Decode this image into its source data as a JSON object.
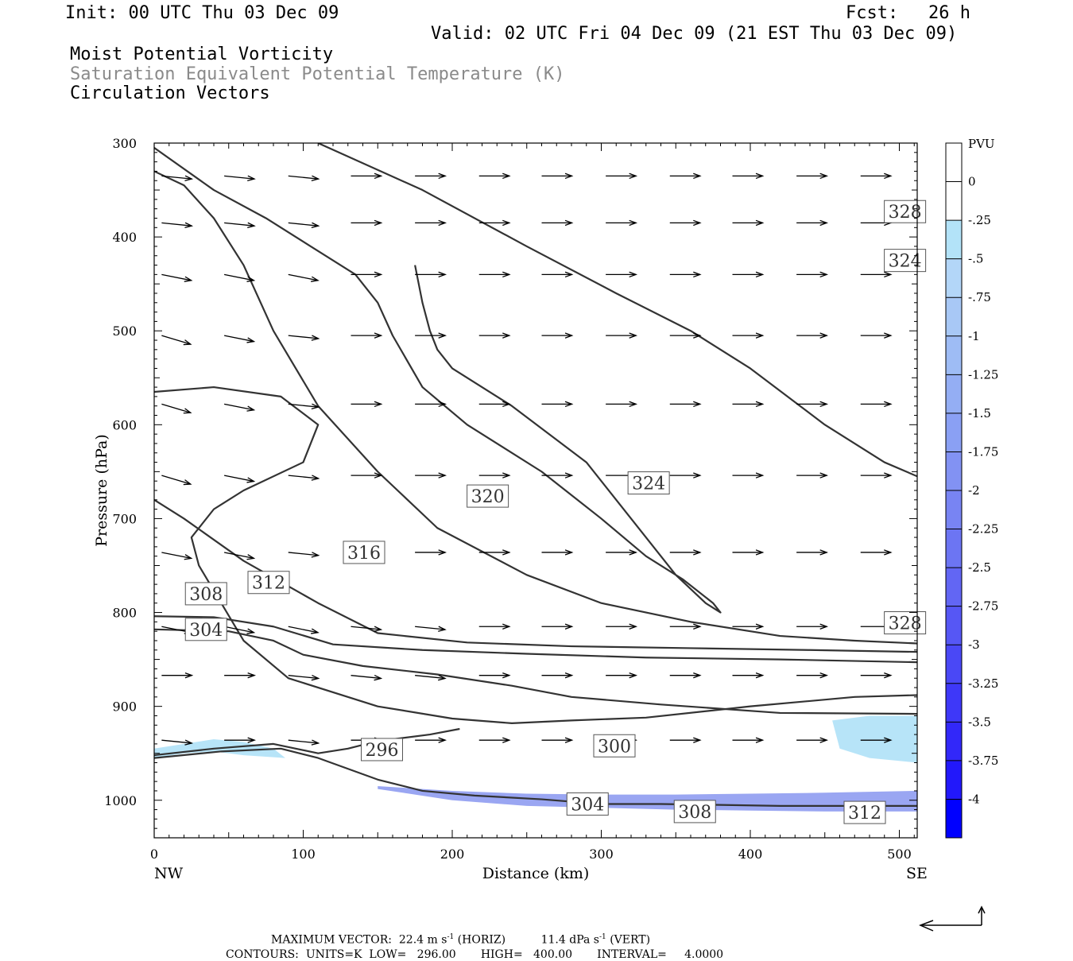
{
  "header": {
    "init": "Init: 00 UTC Thu 03 Dec 09",
    "fcst_label": "Fcst:",
    "fcst_value": "26 h",
    "valid": "Valid: 02 UTC Fri 04 Dec 09 (21 EST Thu 03 Dec 09)",
    "field1": "Moist Potential Vorticity",
    "field2": "Saturation Equivalent Potential Temperature (K)",
    "field3": "Circulation Vectors"
  },
  "chart_data": {
    "type": "cross-section",
    "xlabel": "Distance (km)",
    "ylabel": "Pressure (hPa)",
    "x_ticks": [
      "0",
      "100",
      "200",
      "300",
      "400",
      "500"
    ],
    "x_end_labels": {
      "left": "NW",
      "right": "SE"
    },
    "xlim": [
      0,
      512
    ],
    "y_ticks": [
      "300",
      "400",
      "500",
      "600",
      "700",
      "800",
      "900",
      "1000"
    ],
    "ylim": [
      1040,
      300
    ],
    "pv_colorbar": {
      "unit": "PVU",
      "labels": [
        "0",
        "-.25",
        "-.5",
        "-.75",
        "-1",
        "-1.25",
        "-1.5",
        "-1.75",
        "-2",
        "-2.25",
        "-2.5",
        "-2.75",
        "-3",
        "-3.25",
        "-3.5",
        "-3.75",
        "-4"
      ],
      "colors": [
        "#ffffff",
        "#ffffff",
        "#b3e3f8",
        "#b3d6f8",
        "#a8c8f6",
        "#9ebcf5",
        "#94aef4",
        "#8aa0f4",
        "#8292f3",
        "#7884f3",
        "#6c75f3",
        "#6266f4",
        "#5657f5",
        "#4a48f6",
        "#3e38f8",
        "#3228f9",
        "#2218fb",
        "#0000ff"
      ]
    },
    "theta_contours": [
      {
        "label": "296",
        "x": [
          0,
          40,
          80,
          95,
          110,
          130,
          150,
          185,
          205
        ],
        "p": [
          952,
          945,
          940,
          945,
          950,
          945,
          937,
          930,
          924
        ]
      },
      {
        "label": "300",
        "x": [
          0,
          45,
          85,
          110,
          150,
          180,
          215,
          260,
          300,
          340,
          380,
          420,
          460,
          512
        ],
        "p": [
          955,
          948,
          945,
          955,
          978,
          990,
          995,
          999,
          1004,
          1004,
          1005,
          1006,
          1006,
          1006
        ]
      },
      {
        "label": "304",
        "x": [
          0,
          50,
          80,
          100,
          140,
          190,
          240,
          280,
          340,
          420,
          512
        ],
        "p": [
          818,
          820,
          830,
          845,
          857,
          866,
          878,
          890,
          898,
          907,
          908
        ]
      },
      {
        "label": "308",
        "x": [
          0,
          40,
          80,
          120,
          180,
          250,
          330,
          420,
          512
        ],
        "p": [
          804,
          805,
          815,
          834,
          840,
          844,
          848,
          850,
          853
        ]
      },
      {
        "label": "312",
        "x": [
          0,
          20,
          60,
          110,
          150,
          210,
          280,
          360,
          440,
          512
        ],
        "p": [
          680,
          700,
          745,
          790,
          822,
          832,
          836,
          838,
          840,
          842
        ]
      },
      {
        "label": "316",
        "x": [
          0,
          20,
          40,
          60,
          80,
          110,
          150,
          190,
          250,
          300,
          360,
          420,
          470,
          512
        ],
        "p": [
          330,
          345,
          380,
          430,
          500,
          580,
          650,
          710,
          760,
          790,
          810,
          825,
          830,
          833
        ]
      },
      {
        "label": "320",
        "x": [
          0,
          40,
          85,
          110,
          100,
          60,
          40,
          25,
          30,
          45,
          60,
          90,
          150,
          200,
          240,
          280,
          330,
          400,
          470,
          512
        ],
        "p": [
          565,
          560,
          570,
          600,
          640,
          670,
          690,
          720,
          750,
          790,
          830,
          870,
          900,
          913,
          918,
          915,
          912,
          900,
          890,
          888
        ]
      },
      {
        "label": "324",
        "x": [
          0,
          40,
          75,
          105,
          135,
          150,
          160,
          180,
          210,
          260,
          300,
          330,
          355,
          375,
          380,
          370,
          350,
          320,
          290,
          240,
          200,
          190,
          185,
          180,
          175
        ],
        "p": [
          305,
          350,
          380,
          410,
          440,
          470,
          505,
          560,
          600,
          650,
          700,
          740,
          765,
          790,
          800,
          790,
          760,
          700,
          640,
          580,
          540,
          520,
          500,
          470,
          430
        ]
      },
      {
        "label": "328",
        "x": [
          110,
          180,
          250,
          310,
          360,
          400,
          450,
          490,
          512
        ],
        "p": [
          300,
          350,
          410,
          460,
          500,
          540,
          600,
          640,
          655
        ]
      }
    ],
    "theta_labels": [
      {
        "text": "296",
        "x": 140,
        "p": 946
      },
      {
        "text": "300",
        "x": 296,
        "p": 942
      },
      {
        "text": "304",
        "x": 278,
        "p": 1004
      },
      {
        "text": "308",
        "x": 350,
        "p": 1012
      },
      {
        "text": "312",
        "x": 464,
        "p": 1013
      },
      {
        "text": "304",
        "x": 22,
        "p": 818
      },
      {
        "text": "308",
        "x": 22,
        "p": 780
      },
      {
        "text": "312",
        "x": 64,
        "p": 768
      },
      {
        "text": "316",
        "x": 128,
        "p": 736
      },
      {
        "text": "320",
        "x": 211,
        "p": 676
      },
      {
        "text": "324",
        "x": 319,
        "p": 662
      },
      {
        "text": "324",
        "x": 491,
        "p": 425
      },
      {
        "text": "328",
        "x": 491,
        "p": 373
      },
      {
        "text": "328",
        "x": 491,
        "p": 811
      }
    ],
    "vectors": {
      "x": [
        5,
        47,
        90,
        132,
        175,
        218,
        260,
        303,
        346,
        388,
        431,
        474
      ],
      "p": [
        335,
        385,
        440,
        505,
        578,
        654,
        736,
        815,
        867,
        936
      ],
      "u": [
        [
          1,
          1,
          1,
          1,
          1,
          1,
          1,
          1,
          1,
          1,
          1,
          1
        ],
        [
          1,
          1,
          1,
          1,
          1,
          1,
          1,
          1,
          1,
          1,
          1,
          1
        ],
        [
          1,
          1,
          1,
          1,
          1,
          1,
          1,
          1,
          1,
          1,
          1,
          1
        ],
        [
          1,
          1,
          1,
          1,
          1,
          1,
          1,
          1,
          1,
          1,
          1,
          1
        ],
        [
          1,
          1,
          1,
          1,
          1,
          1,
          1,
          1,
          1,
          1,
          1,
          1
        ],
        [
          1,
          1,
          1,
          1,
          1,
          1,
          1,
          1,
          1,
          1,
          1,
          1
        ],
        [
          1,
          1,
          1,
          1,
          1,
          1,
          1,
          1,
          1,
          1,
          1,
          1
        ],
        [
          1,
          1,
          1,
          1,
          1,
          1,
          1,
          1,
          1,
          1,
          1,
          1
        ],
        [
          1,
          1,
          1,
          1,
          1,
          1,
          1,
          1,
          1,
          1,
          1,
          1
        ],
        [
          1,
          1,
          1,
          1,
          1,
          1,
          1,
          1,
          1,
          1,
          1,
          1
        ]
      ],
      "w": [
        [
          -0.1,
          -0.1,
          -0.1,
          0,
          0,
          0,
          0,
          0,
          0,
          0,
          0,
          0
        ],
        [
          -0.1,
          -0.1,
          -0.1,
          0,
          0,
          0,
          0,
          0,
          0,
          0,
          0,
          0
        ],
        [
          -0.2,
          -0.2,
          -0.2,
          0,
          0,
          0,
          0,
          0,
          0,
          0,
          0,
          0
        ],
        [
          -0.3,
          -0.2,
          -0.1,
          0,
          0,
          0,
          0,
          0,
          0,
          0,
          0,
          0
        ],
        [
          -0.3,
          -0.2,
          -0.1,
          0,
          0,
          0,
          0,
          0,
          0,
          0,
          0,
          0
        ],
        [
          -0.3,
          -0.2,
          -0.1,
          0,
          0,
          0,
          0,
          0,
          0,
          0,
          0,
          0
        ],
        [
          -0.2,
          -0.2,
          -0.1,
          0,
          0,
          0,
          0,
          0,
          0,
          0,
          0,
          0
        ],
        [
          -0.2,
          -0.2,
          -0.2,
          -0.1,
          -0.1,
          0,
          0,
          0,
          0,
          0,
          0,
          0
        ],
        [
          0,
          0,
          -0.1,
          -0.1,
          -0.1,
          0,
          0,
          0,
          0,
          0,
          0,
          0
        ],
        [
          -0.1,
          0,
          -0.1,
          0,
          0,
          0,
          0,
          0,
          0,
          0,
          0,
          0
        ]
      ]
    },
    "pv_regions": [
      {
        "value": "-.5",
        "x": [
          0,
          20,
          40,
          60,
          80,
          88,
          60,
          40,
          20,
          0
        ],
        "p": [
          945,
          940,
          935,
          938,
          945,
          955,
          952,
          948,
          950,
          955
        ]
      },
      {
        "value": "-1.75",
        "x": [
          150,
          200,
          250,
          300,
          350,
          400,
          450,
          512,
          512,
          450,
          400,
          350,
          300,
          250,
          200,
          150
        ],
        "p": [
          985,
          990,
          993,
          994,
          994,
          993,
          992,
          990,
          1012,
          1012,
          1011,
          1010,
          1008,
          1006,
          1000,
          988
        ]
      },
      {
        "value": "-.5",
        "x": [
          455,
          480,
          512,
          512,
          480,
          460
        ],
        "p": [
          915,
          910,
          910,
          960,
          955,
          945
        ]
      }
    ]
  },
  "footer": {
    "max_vector_label": "MAXIMUM VECTOR:",
    "horiz": "22.4 m s",
    "horiz_unit": "(HORIZ)",
    "vert": "11.4 dPa s",
    "vert_unit": "(VERT)",
    "contours_label": "CONTOURS:",
    "units": "UNITS=K",
    "low": "LOW=   296.00",
    "high": "HIGH=   400.00",
    "interval": "INTERVAL=     4.0000"
  }
}
